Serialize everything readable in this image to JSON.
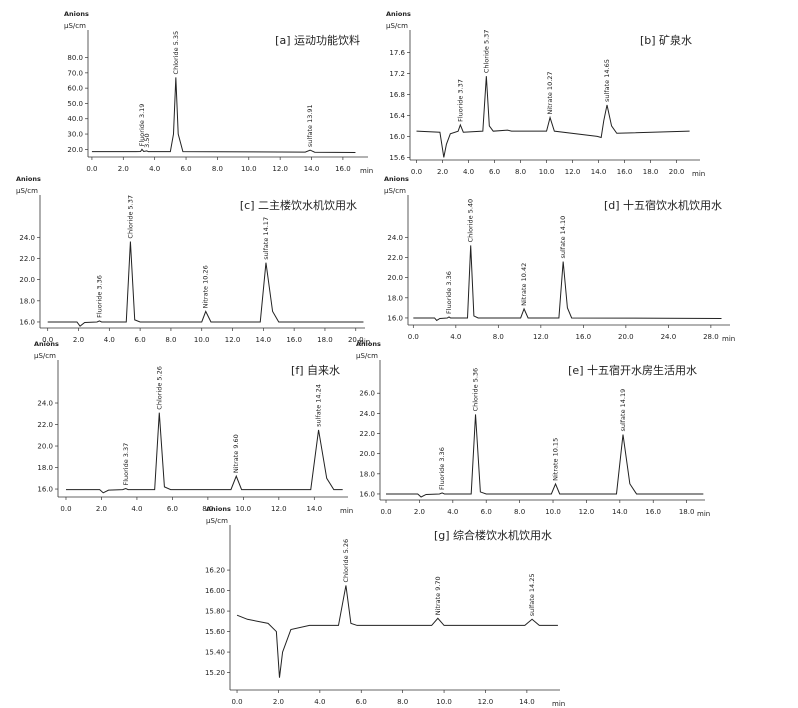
{
  "chart_data": [
    {
      "type": "line",
      "title": "[a] 运动功能饮料",
      "y_title": "Anions",
      "y_unit": "µS/cm",
      "x_unit": "min",
      "color": "#222222",
      "xlim": [
        -0.25,
        17.6
      ],
      "ylim": [
        15,
        98
      ],
      "xticks": [
        {
          "value": 0,
          "label": "0.0"
        },
        {
          "value": 2,
          "label": "2.0"
        },
        {
          "value": 4,
          "label": "4.0"
        },
        {
          "value": 6,
          "label": "6.0"
        },
        {
          "value": 8,
          "label": "8.0"
        },
        {
          "value": 10,
          "label": "10.0"
        },
        {
          "value": 12,
          "label": "12.0"
        },
        {
          "value": 14,
          "label": "14.0"
        },
        {
          "value": 16,
          "label": "16.0"
        }
      ],
      "yticks": [
        {
          "value": 20,
          "label": "20.0"
        },
        {
          "value": 30,
          "label": "30.0"
        },
        {
          "value": 40,
          "label": "40.0"
        },
        {
          "value": 50,
          "label": "50.0"
        },
        {
          "value": 60,
          "label": "60.0"
        },
        {
          "value": 70,
          "label": "70.0"
        },
        {
          "value": 80,
          "label": "80.0"
        }
      ],
      "x": [
        0,
        2.8,
        3.1,
        3.19,
        3.3,
        3.5,
        3.6,
        5.0,
        5.2,
        5.35,
        5.5,
        5.8,
        13.6,
        13.91,
        14.2,
        16.8
      ],
      "values": [
        18.5,
        18.5,
        18.6,
        20,
        18.6,
        19,
        18.5,
        18.5,
        30,
        67,
        30,
        18.5,
        18.2,
        19.5,
        18.1,
        17.9
      ],
      "peaks": [
        {
          "label": "Fluoride 3.19",
          "x": 3.19
        },
        {
          "label": "3.50",
          "x": 3.5
        },
        {
          "label": "Chloride 5.35",
          "x": 5.35
        },
        {
          "label": "sulfate 13.91",
          "x": 13.91
        }
      ]
    },
    {
      "type": "line",
      "title": "[b] 矿泉水",
      "y_title": "Anions",
      "y_unit": "µS/cm",
      "x_unit": "min",
      "color": "#222222",
      "xlim": [
        -0.5,
        21.8
      ],
      "ylim": [
        15.55,
        18.03
      ],
      "xticks": [
        {
          "value": 0,
          "label": "0.0"
        },
        {
          "value": 2,
          "label": "2.0"
        },
        {
          "value": 4,
          "label": "4.0"
        },
        {
          "value": 6,
          "label": "6.0"
        },
        {
          "value": 8,
          "label": "8.0"
        },
        {
          "value": 10,
          "label": "10.0"
        },
        {
          "value": 12,
          "label": "12.0"
        },
        {
          "value": 14,
          "label": "14.0"
        },
        {
          "value": 16,
          "label": "16.0"
        },
        {
          "value": 18,
          "label": "18.0"
        },
        {
          "value": 20,
          "label": "20.0"
        }
      ],
      "yticks": [
        15.6,
        16,
        16.4,
        16.8,
        17.2,
        17.6
      ],
      "x": [
        0,
        1.8,
        2.1,
        2.3,
        2.6,
        3.2,
        3.37,
        3.6,
        5.1,
        5.37,
        5.6,
        5.9,
        7.0,
        7.3,
        10.0,
        10.27,
        10.6,
        13.9,
        14.2,
        14.4,
        14.65,
        15.0,
        15.4,
        21
      ],
      "values": [
        16.1,
        16.08,
        15.6,
        15.85,
        16.05,
        16.1,
        16.22,
        16.08,
        16.1,
        17.15,
        16.2,
        16.1,
        16.12,
        16.1,
        16.1,
        16.36,
        16.1,
        16.0,
        15.98,
        16.3,
        16.6,
        16.2,
        16.06,
        16.1
      ],
      "peaks": [
        {
          "label": "Fluoride 3.37",
          "x": 3.37
        },
        {
          "label": "Chloride 5.37",
          "x": 5.37
        },
        {
          "label": "Nitrate 10.27",
          "x": 10.27
        },
        {
          "label": "sulfate 14.65",
          "x": 14.65
        }
      ]
    },
    {
      "type": "line",
      "title": "[c] 二主楼饮水机饮用水",
      "y_title": "Anions",
      "y_unit": "µS/cm",
      "x_unit": "min",
      "color": "#222222",
      "xlim": [
        -0.5,
        20.6
      ],
      "ylim": [
        15.43,
        28
      ],
      "xticks": [
        {
          "value": 0,
          "label": "0.0"
        },
        {
          "value": 2,
          "label": "2.0"
        },
        {
          "value": 4,
          "label": "4.0"
        },
        {
          "value": 6,
          "label": "6.0"
        },
        {
          "value": 8,
          "label": "8.0"
        },
        {
          "value": 10,
          "label": "10.0"
        },
        {
          "value": 12,
          "label": "12.0"
        },
        {
          "value": 14,
          "label": "14.0"
        },
        {
          "value": 16,
          "label": "16.0"
        },
        {
          "value": 18,
          "label": "18.0"
        },
        {
          "value": 20,
          "label": "20.0"
        }
      ],
      "yticks": [
        {
          "value": 16,
          "label": "16.0"
        },
        {
          "value": 18,
          "label": "18.0"
        },
        {
          "value": 20,
          "label": "20.0"
        },
        {
          "value": 22,
          "label": "22.0"
        },
        {
          "value": 24,
          "label": "24.0"
        }
      ],
      "x": [
        0,
        1.9,
        2.1,
        2.4,
        3.2,
        3.36,
        3.5,
        5.1,
        5.37,
        5.65,
        6,
        10.0,
        10.26,
        10.6,
        13.8,
        14.17,
        14.6,
        15.0,
        20.5
      ],
      "values": [
        16,
        16,
        15.6,
        15.95,
        16,
        16.1,
        16,
        16,
        23.6,
        16.2,
        16,
        16,
        17,
        16,
        16,
        21.6,
        17,
        16,
        16
      ],
      "peaks": [
        {
          "label": "Fluoride 3.36",
          "x": 3.36
        },
        {
          "label": "Chloride 5.37",
          "x": 5.37
        },
        {
          "label": "Nitrate 10.26",
          "x": 10.26
        },
        {
          "label": "sulfate 14.17",
          "x": 14.17
        }
      ]
    },
    {
      "type": "line",
      "title": "[d] 十五宿饮水机饮用水",
      "y_title": "Anions",
      "y_unit": "µS/cm",
      "x_unit": "min",
      "color": "#222222",
      "xlim": [
        -0.5,
        29.8
      ],
      "ylim": [
        15.3,
        28.2
      ],
      "xticks": [
        {
          "value": 0,
          "label": "0.0"
        },
        {
          "value": 4,
          "label": "4.0"
        },
        {
          "value": 8,
          "label": "8.0"
        },
        {
          "value": 12,
          "label": "12.0"
        },
        {
          "value": 16,
          "label": "16.0"
        },
        {
          "value": 20,
          "label": "20.0"
        },
        {
          "value": 24,
          "label": "24.0"
        },
        {
          "value": 28,
          "label": "28.0"
        }
      ],
      "yticks": [
        {
          "value": 16,
          "label": "16.0"
        },
        {
          "value": 18,
          "label": "18.0"
        },
        {
          "value": 20,
          "label": "20.0"
        },
        {
          "value": 22,
          "label": "22.0"
        },
        {
          "value": 24,
          "label": "24.0"
        }
      ],
      "x": [
        0,
        2.0,
        2.2,
        2.5,
        3.2,
        3.36,
        3.5,
        5.1,
        5.4,
        5.7,
        6.1,
        10.1,
        10.42,
        10.8,
        13.7,
        14.1,
        14.5,
        14.9,
        29
      ],
      "values": [
        16,
        16,
        15.75,
        15.95,
        16,
        16.1,
        16,
        16,
        23.2,
        16.2,
        16,
        16,
        16.9,
        16,
        16,
        21.6,
        17,
        16,
        15.95
      ],
      "peaks": [
        {
          "label": "Fluoride 3.36",
          "x": 3.36
        },
        {
          "label": "Chloride 5.40",
          "x": 5.4
        },
        {
          "label": "Nitrate 10.42",
          "x": 10.42
        },
        {
          "label": "sulfate 14.10",
          "x": 14.1
        }
      ]
    },
    {
      "type": "line",
      "title": "[f] 自来水",
      "y_title": "Anions",
      "y_unit": "µS/cm",
      "x_unit": "min",
      "color": "#222222",
      "xlim": [
        -0.45,
        15.9
      ],
      "ylim": [
        15.26,
        28
      ],
      "xticks": [
        {
          "value": 0,
          "label": "0.0"
        },
        {
          "value": 2,
          "label": "2.0"
        },
        {
          "value": 4,
          "label": "4.0"
        },
        {
          "value": 6,
          "label": "6.0"
        },
        {
          "value": 8,
          "label": "8.0"
        },
        {
          "value": 10,
          "label": "10.0"
        },
        {
          "value": 12,
          "label": "12.0"
        },
        {
          "value": 14,
          "label": "14.0"
        }
      ],
      "yticks": [
        {
          "value": 16,
          "label": "16.0"
        },
        {
          "value": 18,
          "label": "18.0"
        },
        {
          "value": 20,
          "label": "20.0"
        },
        {
          "value": 22,
          "label": "22.0"
        },
        {
          "value": 24,
          "label": "24.0"
        }
      ],
      "x": [
        0,
        1.9,
        2.1,
        2.4,
        3.2,
        3.37,
        3.5,
        5.0,
        5.26,
        5.55,
        5.9,
        9.3,
        9.6,
        9.9,
        13.8,
        14.24,
        14.7,
        15.1,
        15.6
      ],
      "values": [
        15.95,
        15.95,
        15.65,
        15.9,
        15.95,
        16.05,
        15.95,
        15.95,
        23.1,
        16.2,
        15.95,
        15.95,
        17.2,
        15.95,
        15.95,
        21.5,
        17,
        15.95,
        15.95
      ],
      "peaks": [
        {
          "label": "Fluoride 3.37",
          "x": 3.37
        },
        {
          "label": "Chloride 5.26",
          "x": 5.26
        },
        {
          "label": "Nitrate 9.60",
          "x": 9.6
        },
        {
          "label": "sulfate 14.24",
          "x": 14.24
        }
      ]
    },
    {
      "type": "line",
      "title": "[e] 十五宿开水房生活用水",
      "y_title": "Anions",
      "y_unit": "µS/cm",
      "x_unit": "min",
      "color": "#222222",
      "xlim": [
        -0.36,
        19.1
      ],
      "ylim": [
        15.4,
        29.3
      ],
      "xticks": [
        {
          "value": 0,
          "label": "0.0"
        },
        {
          "value": 2,
          "label": "2.0"
        },
        {
          "value": 4,
          "label": "4.0"
        },
        {
          "value": 6,
          "label": "6.0"
        },
        {
          "value": 8,
          "label": "8.0"
        },
        {
          "value": 10,
          "label": "10.0"
        },
        {
          "value": 12,
          "label": "12.0"
        },
        {
          "value": 14,
          "label": "14.0"
        },
        {
          "value": 16,
          "label": "16.0"
        },
        {
          "value": 18,
          "label": "18.0"
        }
      ],
      "yticks": [
        {
          "value": 16,
          "label": "16.0"
        },
        {
          "value": 18,
          "label": "18.0"
        },
        {
          "value": 20,
          "label": "20.0"
        },
        {
          "value": 22,
          "label": "22.0"
        },
        {
          "value": 24,
          "label": "24.0"
        },
        {
          "value": 26,
          "label": "26.0"
        }
      ],
      "x": [
        0,
        1.9,
        2.1,
        2.4,
        3.2,
        3.36,
        3.5,
        5.1,
        5.36,
        5.65,
        6.0,
        9.9,
        10.15,
        10.4,
        13.8,
        14.19,
        14.6,
        15,
        19.0
      ],
      "values": [
        16,
        16,
        15.7,
        15.95,
        16,
        16.1,
        16,
        16,
        23.9,
        16.2,
        16,
        16,
        17,
        16,
        16,
        21.9,
        17,
        16,
        16
      ],
      "peaks": [
        {
          "label": "Fluoride 3.36",
          "x": 3.36
        },
        {
          "label": "Chloride 5.36",
          "x": 5.36
        },
        {
          "label": "Nitrate 10.15",
          "x": 10.15
        },
        {
          "label": "sulfate 14.19",
          "x": 14.19
        }
      ]
    },
    {
      "type": "line",
      "title": "[g] 综合楼饮水机饮用水",
      "y_title": "Anions",
      "y_unit": "µS/cm",
      "x_unit": "min",
      "color": "#222222",
      "xlim": [
        -0.34,
        15.6
      ],
      "ylim": [
        15.03,
        16.64
      ],
      "xticks": [
        {
          "value": 0,
          "label": "0.0"
        },
        {
          "value": 2,
          "label": "2.0"
        },
        {
          "value": 4,
          "label": "4.0"
        },
        {
          "value": 6,
          "label": "6.0"
        },
        {
          "value": 8,
          "label": "8.0"
        },
        {
          "value": 10,
          "label": "10.0"
        },
        {
          "value": 12,
          "label": "12.0"
        },
        {
          "value": 14,
          "label": "14.0"
        }
      ],
      "yticks": [
        {
          "value": 15.2,
          "label": "15.20"
        },
        {
          "value": 15.4,
          "label": "15.40"
        },
        {
          "value": 15.6,
          "label": "15.60"
        },
        {
          "value": 15.8,
          "label": "15.80"
        },
        {
          "value": 16,
          "label": "16.00"
        },
        {
          "value": 16.2,
          "label": "16.20"
        }
      ],
      "x": [
        0,
        0.5,
        1.5,
        1.9,
        2.05,
        2.2,
        2.6,
        3.5,
        4.9,
        5.26,
        5.5,
        5.8,
        9.4,
        9.7,
        10.0,
        13.9,
        14.25,
        14.6,
        15.5
      ],
      "values": [
        15.76,
        15.72,
        15.68,
        15.6,
        15.15,
        15.4,
        15.62,
        15.66,
        15.66,
        16.05,
        15.68,
        15.66,
        15.66,
        15.73,
        15.66,
        15.66,
        15.72,
        15.66,
        15.66
      ],
      "peaks": [
        {
          "label": "Chloride 5.26",
          "x": 5.26
        },
        {
          "label": "Nitrate 9.70",
          "x": 9.7
        },
        {
          "label": "sulfate 14.25",
          "x": 14.25
        }
      ]
    }
  ]
}
